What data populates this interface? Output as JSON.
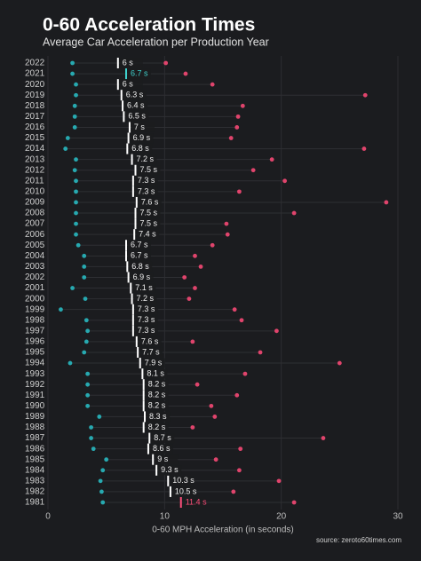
{
  "chart_data": {
    "type": "dot_range",
    "title": "0-60 Acceleration Times",
    "subtitle": "Average Car Acceleration per Production Year",
    "x_label": "0-60 MPH Acceleration (in seconds)",
    "source": "source: zeroto60times.com",
    "categories": [
      "2022",
      "2021",
      "2020",
      "2019",
      "2018",
      "2017",
      "2016",
      "2015",
      "2014",
      "2013",
      "2012",
      "2011",
      "2010",
      "2009",
      "2008",
      "2007",
      "2006",
      "2005",
      "2004",
      "2003",
      "2002",
      "2001",
      "2000",
      "1999",
      "1998",
      "1997",
      "1996",
      "1995",
      "1994",
      "1993",
      "1992",
      "1991",
      "1990",
      "1989",
      "1988",
      "1987",
      "1986",
      "1985",
      "1984",
      "1983",
      "1982",
      "1981"
    ],
    "series": [
      {
        "color": "#27a9b0",
        "values": [
          2.1,
          2.1,
          2.4,
          2.4,
          2.3,
          2.3,
          2.3,
          1.7,
          1.5,
          2.4,
          2.3,
          2.4,
          2.4,
          2.4,
          2.4,
          2.4,
          2.4,
          2.6,
          3.1,
          3.1,
          3.1,
          2.1,
          3.2,
          1.1,
          3.3,
          3.4,
          3.3,
          3.1,
          1.9,
          3.4,
          3.4,
          3.4,
          3.4,
          4.4,
          3.7,
          3.7,
          3.9,
          5,
          4.7,
          4.5,
          4.6,
          4.7
        ]
      },
      {
        "color": "#ffffff",
        "values": [
          6,
          6.7,
          6,
          6.3,
          6.4,
          6.5,
          7,
          6.9,
          6.8,
          7.2,
          7.5,
          7.3,
          7.3,
          7.6,
          7.5,
          7.5,
          7.4,
          6.7,
          6.7,
          6.8,
          6.9,
          7.1,
          7.2,
          7.3,
          7.3,
          7.3,
          7.6,
          7.7,
          7.9,
          8.1,
          8.2,
          8.2,
          8.2,
          8.3,
          8.2,
          8.7,
          8.6,
          9,
          9.3,
          10.3,
          10.5,
          11.4
        ],
        "value_labels": [
          "6 s",
          "6.7 s",
          "6 s",
          "6.3 s",
          "6.4 s",
          "6.5 s",
          "7 s",
          "6.9 s",
          "6.8 s",
          "7.2 s",
          "7.5 s",
          "7.3 s",
          "7.3 s",
          "7.6 s",
          "7.5 s",
          "7.5 s",
          "7.4 s",
          "6.7 s",
          "6.7 s",
          "6.8 s",
          "6.9 s",
          "7.1 s",
          "7.2 s",
          "7.3 s",
          "7.3 s",
          "7.3 s",
          "7.6 s",
          "7.7 s",
          "7.9 s",
          "8.1 s",
          "8.2 s",
          "8.2 s",
          "8.2 s",
          "8.3 s",
          "8.2 s",
          "8.7 s",
          "8.6 s",
          "9 s",
          "9.3 s",
          "10.3 s",
          "10.5 s",
          "11.4 s"
        ]
      },
      {
        "color": "#e0446c",
        "values": [
          10.1,
          11.8,
          14.1,
          27.2,
          16.7,
          16.3,
          16.2,
          15.7,
          27.1,
          19.2,
          17.6,
          20.3,
          16.4,
          29,
          21.1,
          15.3,
          15.4,
          14.1,
          12.6,
          13.1,
          11.7,
          12.6,
          12.1,
          16,
          16.6,
          19.6,
          12.4,
          18.2,
          25,
          16.9,
          12.8,
          16.2,
          14,
          14.3,
          12.4,
          23.6,
          16.5,
          14.4,
          16.4,
          19.8,
          15.9,
          21.1
        ]
      }
    ],
    "highlights": [
      {
        "index": 1,
        "color": "#3fd3cf"
      },
      {
        "index": 41,
        "color": "#ff4f7b"
      }
    ],
    "xlim": [
      0,
      30
    ],
    "xticks": [
      0,
      10,
      20,
      30
    ],
    "grid": true
  }
}
